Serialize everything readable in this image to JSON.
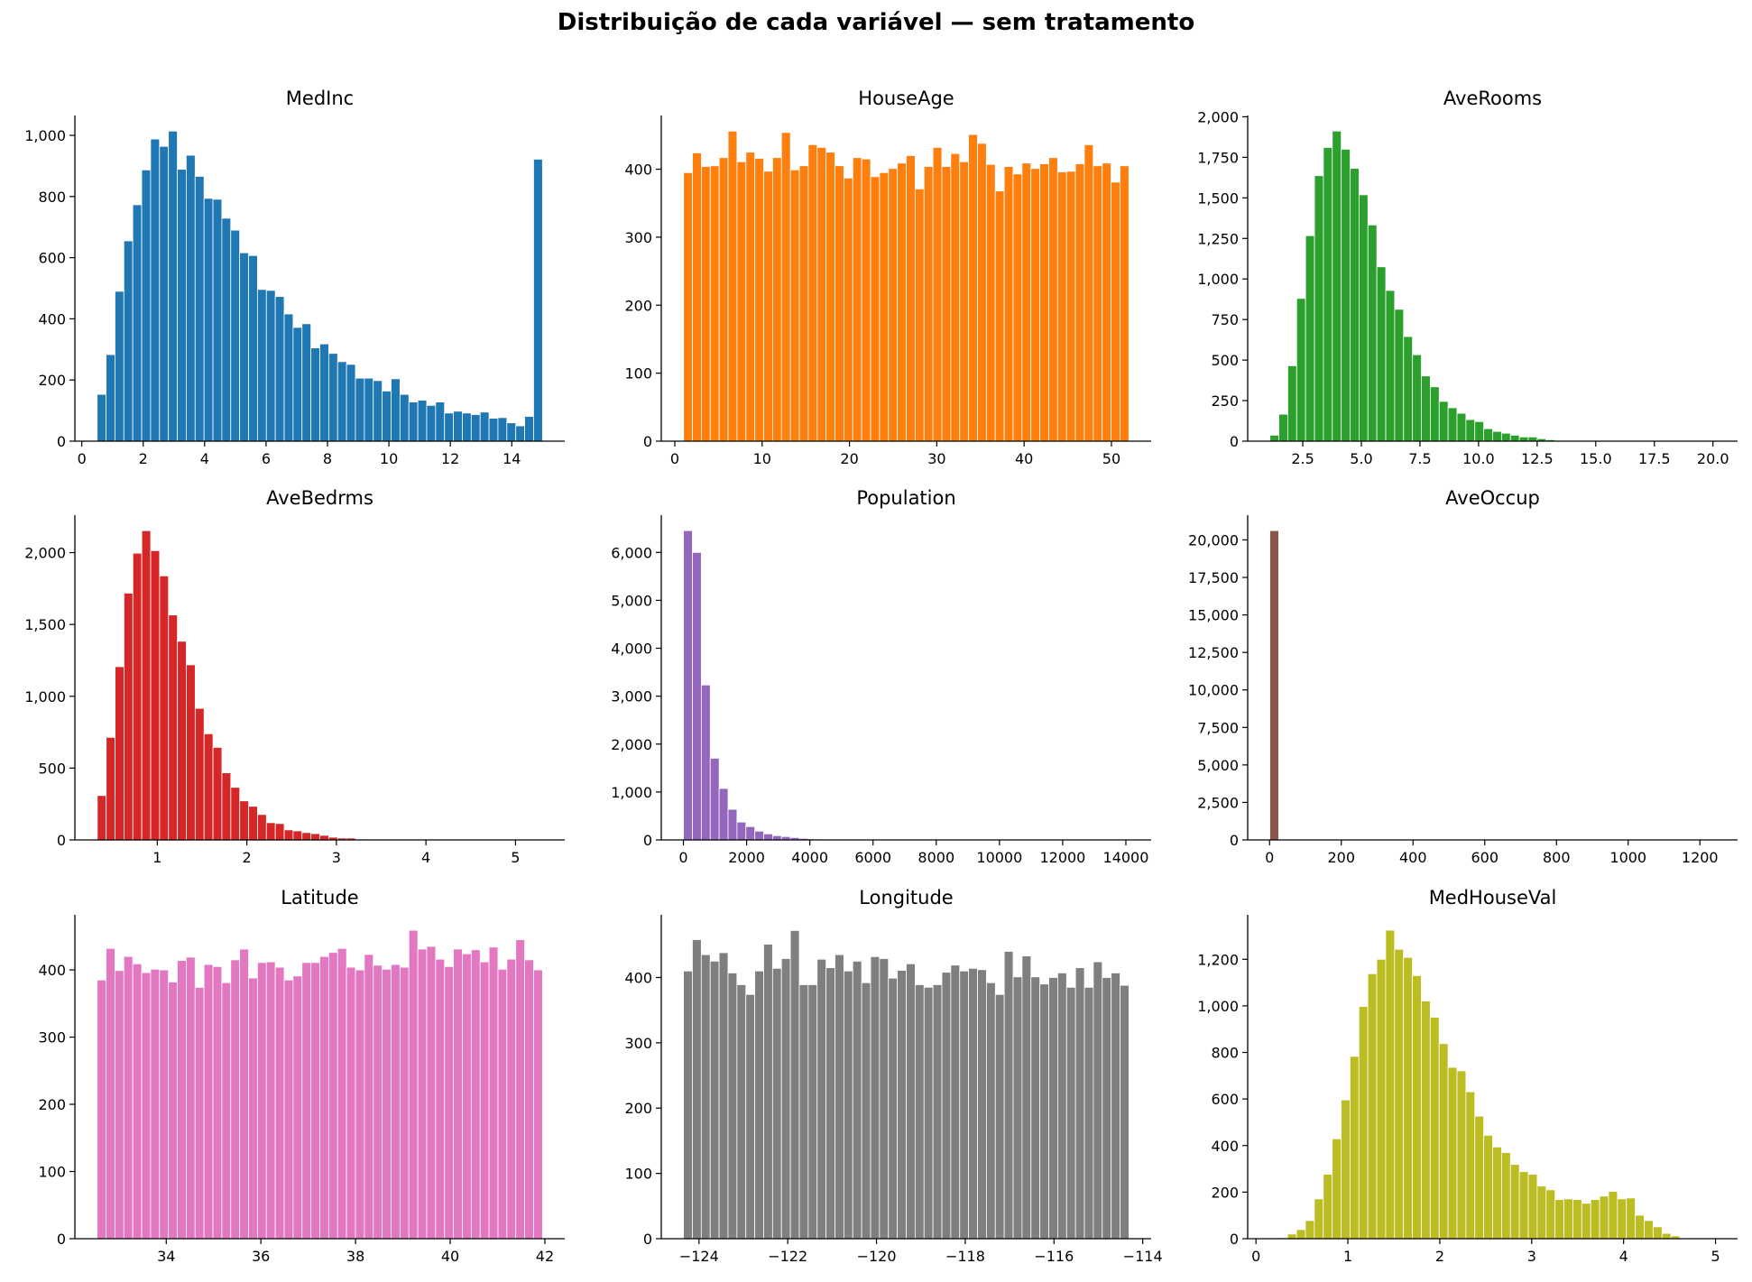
{
  "figure_title": "Distribuição de cada variável — sem tratamento",
  "chart_data": [
    {
      "type": "bar",
      "title": "MedInc",
      "color": "#1f77b4",
      "bin_range": [
        0.5,
        15.0
      ],
      "counts": [
        153,
        283,
        490,
        655,
        773,
        887,
        988,
        964,
        1014,
        889,
        935,
        866,
        794,
        791,
        729,
        690,
        616,
        607,
        496,
        493,
        473,
        416,
        372,
        384,
        305,
        318,
        287,
        260,
        251,
        206,
        206,
        198,
        164,
        204,
        153,
        128,
        134,
        117,
        128,
        92,
        98,
        92,
        87,
        95,
        75,
        77,
        60,
        50,
        81,
        922
      ],
      "xlim": [
        -0.225,
        15.725
      ],
      "ylim": [
        0,
        1065
      ],
      "xticks": [
        0,
        2,
        4,
        6,
        8,
        10,
        12,
        14
      ],
      "xtick_labels": [
        "0",
        "2",
        "4",
        "6",
        "8",
        "10",
        "12",
        "14"
      ],
      "yticks": [
        0,
        200,
        400,
        600,
        800,
        1000
      ],
      "ytick_labels": [
        "0",
        "200",
        "400",
        "600",
        "800",
        "1,000"
      ]
    },
    {
      "type": "bar",
      "title": "HouseAge",
      "color": "#ff7f0e",
      "bin_range": [
        1,
        52
      ],
      "counts": [
        395,
        424,
        404,
        405,
        417,
        456,
        411,
        425,
        416,
        397,
        417,
        454,
        399,
        405,
        436,
        432,
        425,
        405,
        387,
        417,
        415,
        389,
        395,
        401,
        409,
        420,
        371,
        404,
        432,
        404,
        423,
        411,
        451,
        438,
        407,
        368,
        404,
        393,
        409,
        401,
        408,
        417,
        396,
        397,
        408,
        436,
        405,
        409,
        381,
        405
      ],
      "xlim": [
        -1.55,
        54.55
      ],
      "ylim": [
        0,
        479
      ],
      "xticks": [
        0,
        10,
        20,
        30,
        40,
        50
      ],
      "xtick_labels": [
        "0",
        "10",
        "20",
        "30",
        "40",
        "50"
      ],
      "yticks": [
        0,
        100,
        200,
        300,
        400
      ],
      "ytick_labels": [
        "0",
        "100",
        "200",
        "300",
        "400"
      ]
    },
    {
      "type": "bar",
      "title": "AveRooms",
      "color": "#2ca02c",
      "bin_range": [
        1.1,
        20.1
      ],
      "counts": [
        37,
        166,
        465,
        880,
        1267,
        1637,
        1811,
        1912,
        1800,
        1682,
        1519,
        1333,
        1075,
        929,
        813,
        645,
        533,
        402,
        335,
        245,
        206,
        172,
        133,
        121,
        77,
        60,
        49,
        37,
        26,
        26,
        15,
        9,
        5,
        4,
        2,
        3,
        1,
        1,
        0,
        0,
        1,
        0,
        0,
        0,
        0,
        0,
        0,
        0,
        0,
        1
      ],
      "xlim": [
        0.15,
        21.05
      ],
      "ylim": [
        0,
        2008
      ],
      "xticks": [
        2.5,
        5,
        7.5,
        10,
        12.5,
        15,
        17.5,
        20
      ],
      "xtick_labels": [
        "2.5",
        "5.0",
        "7.5",
        "10.0",
        "12.5",
        "15.0",
        "17.5",
        "20.0"
      ],
      "yticks": [
        0,
        250,
        500,
        750,
        1000,
        1250,
        1500,
        1750,
        2000
      ],
      "ytick_labels": [
        "0",
        "250",
        "500",
        "750",
        "1,000",
        "1,250",
        "1,500",
        "1,750",
        "2,000"
      ]
    },
    {
      "type": "bar",
      "title": "AveBedrms",
      "color": "#d62728",
      "bin_range": [
        0.33,
        5.3
      ],
      "counts": [
        309,
        714,
        1206,
        1718,
        1996,
        2153,
        2014,
        1838,
        1566,
        1383,
        1219,
        916,
        739,
        644,
        467,
        366,
        272,
        234,
        177,
        120,
        114,
        70,
        63,
        51,
        44,
        32,
        19,
        13,
        13,
        6,
        5,
        3,
        2,
        1,
        1,
        1,
        0,
        0,
        0,
        0,
        0,
        0,
        0,
        0,
        0,
        0,
        0,
        0,
        0,
        1
      ],
      "xlim": [
        0.08,
        5.55
      ],
      "ylim": [
        0,
        2261
      ],
      "xticks": [
        1,
        2,
        3,
        4,
        5
      ],
      "xtick_labels": [
        "1",
        "2",
        "3",
        "4",
        "5"
      ],
      "yticks": [
        0,
        500,
        1000,
        1500,
        2000
      ],
      "ytick_labels": [
        "0",
        "500",
        "1,000",
        "1,500",
        "2,000"
      ]
    },
    {
      "type": "bar",
      "title": "Population",
      "color": "#9467bd",
      "bin_range": [
        3,
        14100
      ],
      "counts": [
        6455,
        6000,
        3234,
        1705,
        1074,
        638,
        373,
        278,
        183,
        126,
        88,
        70,
        50,
        32,
        20,
        12,
        8,
        6,
        4,
        3,
        2,
        1,
        1,
        1,
        0,
        1,
        0,
        0,
        1,
        0,
        0,
        0,
        0,
        0,
        0,
        0,
        0,
        0,
        0,
        0,
        0,
        0,
        0,
        0,
        0,
        0,
        0,
        0,
        0,
        1
      ],
      "xlim": [
        -700,
        14800
      ],
      "ylim": [
        0,
        6778
      ],
      "xticks": [
        0,
        2000,
        4000,
        6000,
        8000,
        10000,
        12000,
        14000
      ],
      "xtick_labels": [
        "0",
        "2000",
        "4000",
        "6000",
        "8000",
        "10000",
        "12000",
        "14000"
      ],
      "yticks": [
        0,
        1000,
        2000,
        3000,
        4000,
        5000,
        6000
      ],
      "ytick_labels": [
        "0",
        "1,000",
        "2,000",
        "3,000",
        "4,000",
        "5,000",
        "6,000"
      ]
    },
    {
      "type": "bar",
      "title": "AveOccup",
      "color": "#8c564b",
      "bin_range": [
        0.69,
        1243
      ],
      "counts": [
        20620,
        12,
        3,
        1,
        0,
        0,
        0,
        0,
        0,
        0,
        0,
        0,
        0,
        0,
        0,
        0,
        0,
        0,
        0,
        0,
        0,
        0,
        0,
        0,
        0,
        0,
        0,
        0,
        0,
        0,
        0,
        0,
        0,
        0,
        0,
        0,
        0,
        0,
        0,
        0,
        0,
        0,
        0,
        0,
        0,
        0,
        0,
        0,
        0,
        1
      ],
      "xlim": [
        -61,
        1305
      ],
      "ylim": [
        0,
        21651
      ],
      "xticks": [
        0,
        200,
        400,
        600,
        800,
        1000,
        1200
      ],
      "xtick_labels": [
        "0",
        "200",
        "400",
        "600",
        "800",
        "1000",
        "1200"
      ],
      "yticks": [
        0,
        2500,
        5000,
        7500,
        10000,
        12500,
        15000,
        17500,
        20000
      ],
      "ytick_labels": [
        "0",
        "2,500",
        "5,000",
        "7,500",
        "10,000",
        "12,500",
        "15,000",
        "17,500",
        "20,000"
      ]
    },
    {
      "type": "bar",
      "title": "Latitude",
      "color": "#e377c2",
      "bin_range": [
        32.54,
        41.95
      ],
      "counts": [
        385,
        432,
        399,
        420,
        409,
        396,
        401,
        400,
        382,
        414,
        419,
        374,
        408,
        405,
        381,
        415,
        431,
        388,
        411,
        412,
        404,
        385,
        391,
        411,
        411,
        420,
        426,
        432,
        404,
        400,
        423,
        407,
        401,
        408,
        404,
        459,
        431,
        435,
        416,
        405,
        431,
        424,
        430,
        412,
        434,
        401,
        416,
        445,
        415,
        400
      ],
      "xlim": [
        32.07,
        42.42
      ],
      "ylim": [
        0,
        482
      ],
      "xticks": [
        34,
        36,
        38,
        40,
        42
      ],
      "xtick_labels": [
        "34",
        "36",
        "38",
        "40",
        "42"
      ],
      "yticks": [
        0,
        100,
        200,
        300,
        400
      ],
      "ytick_labels": [
        "0",
        "100",
        "200",
        "300",
        "400"
      ]
    },
    {
      "type": "bar",
      "title": "Longitude",
      "color": "#7f7f7f",
      "bin_range": [
        -124.35,
        -114.31
      ],
      "counts": [
        410,
        458,
        435,
        425,
        438,
        407,
        389,
        374,
        410,
        451,
        414,
        429,
        472,
        389,
        389,
        428,
        415,
        435,
        410,
        425,
        392,
        432,
        429,
        399,
        411,
        421,
        389,
        385,
        389,
        408,
        419,
        410,
        414,
        412,
        392,
        374,
        440,
        401,
        433,
        401,
        390,
        400,
        407,
        385,
        415,
        385,
        424,
        400,
        407,
        388
      ],
      "xlim": [
        -124.85,
        -113.81
      ],
      "ylim": [
        0,
        496
      ],
      "xticks": [
        -124,
        -122,
        -120,
        -118,
        -116,
        -114
      ],
      "xtick_labels": [
        "−124",
        "−122",
        "−120",
        "−118",
        "−116",
        "−114"
      ],
      "yticks": [
        0,
        100,
        200,
        300,
        400
      ],
      "ytick_labels": [
        "0",
        "100",
        "200",
        "300",
        "400"
      ]
    },
    {
      "type": "bar",
      "title": "MedHouseVal",
      "color": "#bcbd22",
      "bin_range": [
        0.15,
        5.0
      ],
      "counts": [
        0,
        4,
        20,
        39,
        78,
        171,
        277,
        429,
        596,
        783,
        997,
        1138,
        1200,
        1325,
        1243,
        1208,
        1130,
        1021,
        951,
        838,
        736,
        721,
        631,
        526,
        444,
        394,
        370,
        319,
        288,
        277,
        226,
        210,
        168,
        171,
        168,
        152,
        168,
        183,
        203,
        171,
        175,
        101,
        78,
        51,
        23,
        12,
        3,
        1,
        0,
        0
      ],
      "xlim": [
        -0.09,
        5.24
      ],
      "ylim": [
        0,
        1391
      ],
      "xticks": [
        0,
        1,
        2,
        3,
        4,
        5
      ],
      "xtick_labels": [
        "0",
        "1",
        "2",
        "3",
        "4",
        "5"
      ],
      "yticks": [
        0,
        200,
        400,
        600,
        800,
        1000,
        1200
      ],
      "ytick_labels": [
        "0",
        "200",
        "400",
        "600",
        "800",
        "1,000",
        "1,200"
      ]
    }
  ]
}
